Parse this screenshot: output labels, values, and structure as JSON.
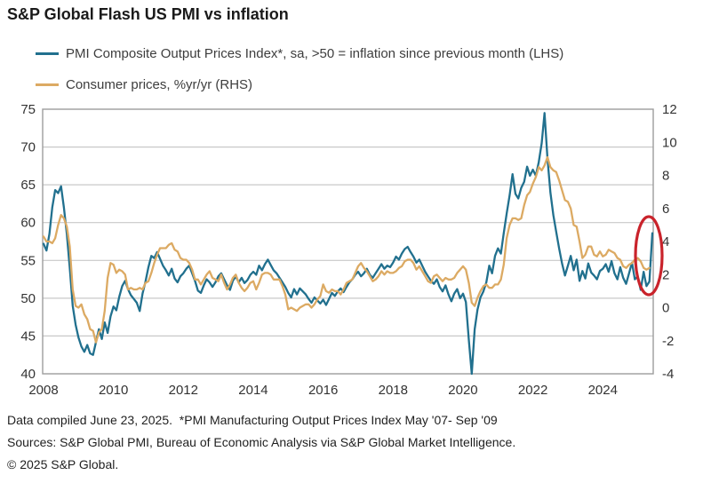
{
  "title": "S&P Global Flash US PMI vs inflation",
  "legend": [
    {
      "label": "PMI Composite Output Prices Index*, sa, >50 = inflation since previous month (LHS)",
      "color": "#21708e"
    },
    {
      "label": "Consumer prices, %yr/yr (RHS)",
      "color": "#dcaa63"
    }
  ],
  "footnotes": [
    "Data compiled June 23, 2025.  *PMI Manufacturing Output Prices Index May '07- Sep '09",
    "Sources: S&P Global PMI, Bureau of Economic Analysis via S&P Global Market Intelligence.",
    "© 2025 S&P Global."
  ],
  "chart_data": {
    "type": "line",
    "x_frequency": "monthly",
    "x_start": "2008-01",
    "x_tick_labels": [
      "2008",
      "2010",
      "2012",
      "2014",
      "2016",
      "2018",
      "2020",
      "2022",
      "2024"
    ],
    "left_axis": {
      "side": "left",
      "min": 40,
      "max": 75,
      "ticks": [
        75,
        70,
        65,
        60,
        55,
        50,
        45,
        40
      ]
    },
    "right_axis": {
      "side": "right",
      "min": -4,
      "max": 12,
      "ticks": [
        12,
        10,
        8,
        6,
        4,
        2,
        0,
        -2,
        -4
      ]
    },
    "grid": "horizontal-only",
    "legend_position": "top-left",
    "style": {
      "grid_color": "#c8c8c8",
      "border_color": "#9d9d9d",
      "tick_color": "#333333"
    },
    "annotation": {
      "shape": "ellipse",
      "color": "#c9232b",
      "highlights": "latest PMI output prices spike (June 2025 flash)"
    },
    "series": [
      {
        "name": "PMI Composite Output Prices Index (LHS)",
        "axis": "left",
        "color": "#21708e",
        "start": "2008-01",
        "end": "2025-06",
        "values": [
          57.2,
          56.3,
          58.5,
          62.0,
          64.3,
          63.9,
          64.8,
          62.0,
          58.5,
          54.0,
          49.0,
          46.5,
          44.8,
          43.6,
          42.9,
          43.8,
          42.7,
          42.5,
          44.2,
          45.9,
          44.6,
          46.8,
          45.4,
          47.6,
          48.9,
          48.4,
          50.2,
          51.6,
          52.3,
          51.2,
          50.4,
          49.9,
          49.4,
          48.3,
          50.6,
          52.2,
          54.1,
          55.6,
          55.3,
          56.1,
          55.2,
          54.3,
          53.7,
          53.0,
          53.9,
          52.6,
          52.1,
          52.9,
          53.3,
          53.9,
          54.3,
          53.3,
          52.3,
          51.0,
          50.7,
          51.7,
          52.5,
          52.1,
          51.5,
          52.1,
          52.9,
          53.3,
          52.5,
          51.7,
          51.1,
          52.3,
          52.9,
          52.1,
          52.7,
          52.0,
          52.4,
          53.1,
          53.5,
          53.1,
          54.3,
          53.7,
          54.5,
          55.1,
          54.4,
          53.7,
          53.3,
          52.7,
          52.1,
          51.5,
          50.7,
          50.1,
          51.2,
          50.5,
          51.3,
          50.9,
          50.5,
          49.9,
          49.4,
          50.1,
          49.7,
          49.3,
          49.8,
          49.1,
          49.9,
          50.7,
          50.3,
          50.9,
          51.3,
          50.8,
          51.5,
          52.1,
          52.5,
          53.1,
          53.5,
          52.9,
          53.3,
          53.9,
          53.1,
          52.7,
          53.3,
          53.9,
          54.5,
          53.9,
          54.3,
          54.1,
          54.7,
          55.5,
          55.1,
          55.9,
          56.5,
          56.8,
          56.1,
          55.5,
          54.7,
          55.1,
          54.3,
          53.5,
          52.9,
          52.3,
          51.9,
          52.5,
          51.5,
          50.9,
          51.7,
          50.5,
          49.6,
          50.6,
          51.2,
          50.0,
          50.6,
          49.5,
          44.5,
          40.0,
          45.9,
          48.5,
          50.1,
          50.9,
          52.1,
          54.3,
          53.3,
          55.6,
          56.6,
          55.9,
          58.6,
          61.2,
          63.6,
          66.4,
          63.8,
          63.2,
          64.6,
          65.4,
          67.4,
          66.2,
          67.0,
          66.2,
          68.0,
          70.5,
          74.5,
          68.5,
          64.0,
          61.0,
          58.8,
          56.6,
          54.6,
          53.0,
          54.3,
          55.6,
          53.7,
          55.1,
          52.3,
          53.6,
          52.6,
          54.6,
          53.4,
          53.0,
          52.5,
          53.6,
          53.9,
          54.5,
          53.5,
          54.9,
          53.3,
          52.5,
          54.1,
          52.7,
          51.9,
          53.3,
          54.7,
          52.5,
          52.9,
          51.1,
          53.5,
          51.6,
          52.2,
          58.6
        ]
      },
      {
        "name": "Consumer prices, %yr/yr (RHS)",
        "axis": "right",
        "color": "#dcaa63",
        "start": "2008-01",
        "end": "2025-05",
        "values": [
          4.3,
          4.0,
          4.0,
          3.9,
          4.2,
          5.0,
          5.6,
          5.4,
          4.9,
          3.7,
          1.1,
          0.1,
          0.0,
          0.2,
          -0.4,
          -0.7,
          -1.3,
          -1.4,
          -2.1,
          -1.5,
          -1.3,
          -0.2,
          1.8,
          2.7,
          2.6,
          2.1,
          2.3,
          2.2,
          2.0,
          1.1,
          1.2,
          1.1,
          1.1,
          1.2,
          1.1,
          1.5,
          1.6,
          2.1,
          2.7,
          3.2,
          3.6,
          3.6,
          3.6,
          3.8,
          3.9,
          3.5,
          3.4,
          3.0,
          2.9,
          2.9,
          2.7,
          2.3,
          1.7,
          1.7,
          1.4,
          1.7,
          2.0,
          2.2,
          1.8,
          1.7,
          1.6,
          2.0,
          1.5,
          1.1,
          1.4,
          1.8,
          2.0,
          1.5,
          1.2,
          1.0,
          1.2,
          1.5,
          1.6,
          1.1,
          1.5,
          2.0,
          2.1,
          2.1,
          2.0,
          1.7,
          1.7,
          1.7,
          1.3,
          0.8,
          -0.1,
          0.0,
          -0.1,
          -0.2,
          0.0,
          0.1,
          0.2,
          0.2,
          0.0,
          0.2,
          0.5,
          0.7,
          1.4,
          1.0,
          0.9,
          1.1,
          1.0,
          1.0,
          0.8,
          1.1,
          1.5,
          1.6,
          1.7,
          2.1,
          2.5,
          2.7,
          2.4,
          2.2,
          1.9,
          1.6,
          1.7,
          1.9,
          2.2,
          2.0,
          2.2,
          2.1,
          2.1,
          2.2,
          2.4,
          2.5,
          2.8,
          2.9,
          2.9,
          2.7,
          2.3,
          2.5,
          2.2,
          1.9,
          1.6,
          1.5,
          1.9,
          2.0,
          1.8,
          1.6,
          1.8,
          1.7,
          1.7,
          1.8,
          2.1,
          2.3,
          2.5,
          2.3,
          1.5,
          0.3,
          0.1,
          0.6,
          1.0,
          1.3,
          1.4,
          1.2,
          1.2,
          1.4,
          1.4,
          1.7,
          2.6,
          4.2,
          5.0,
          5.4,
          5.4,
          5.3,
          5.4,
          6.2,
          6.8,
          7.0,
          7.5,
          7.9,
          8.5,
          8.3,
          8.6,
          9.1,
          8.5,
          8.3,
          8.2,
          7.7,
          7.1,
          6.5,
          6.4,
          6.0,
          5.0,
          4.9,
          4.0,
          3.0,
          3.2,
          3.7,
          3.7,
          3.2,
          3.1,
          3.4,
          3.1,
          3.2,
          3.5,
          3.4,
          3.3,
          3.0,
          2.9,
          2.5,
          2.4,
          2.6,
          2.7,
          2.9,
          3.0,
          2.8,
          2.4,
          2.3,
          2.4
        ]
      }
    ]
  }
}
